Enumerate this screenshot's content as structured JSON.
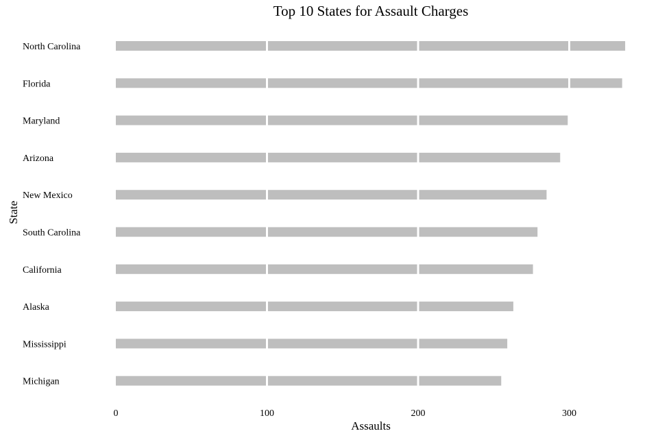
{
  "chart_data": {
    "type": "bar",
    "orientation": "horizontal",
    "title": "Top 10 States for Assault Charges",
    "xlabel": "Assaults",
    "ylabel": "State",
    "categories": [
      "North Carolina",
      "Florida",
      "Maryland",
      "Arizona",
      "New Mexico",
      "South Carolina",
      "California",
      "Alaska",
      "Mississippi",
      "Michigan"
    ],
    "values": [
      337,
      335,
      299,
      294,
      285,
      279,
      276,
      263,
      259,
      255
    ],
    "xlim": [
      0,
      350
    ],
    "xticks": [
      0,
      100,
      200,
      300
    ],
    "xtick_labels": [
      "0",
      "100",
      "200",
      "300"
    ],
    "bar_color": "#bebebe",
    "gridline_color": "#ffffff",
    "background_color": "#ffffff",
    "grid": true,
    "legend": "none"
  }
}
